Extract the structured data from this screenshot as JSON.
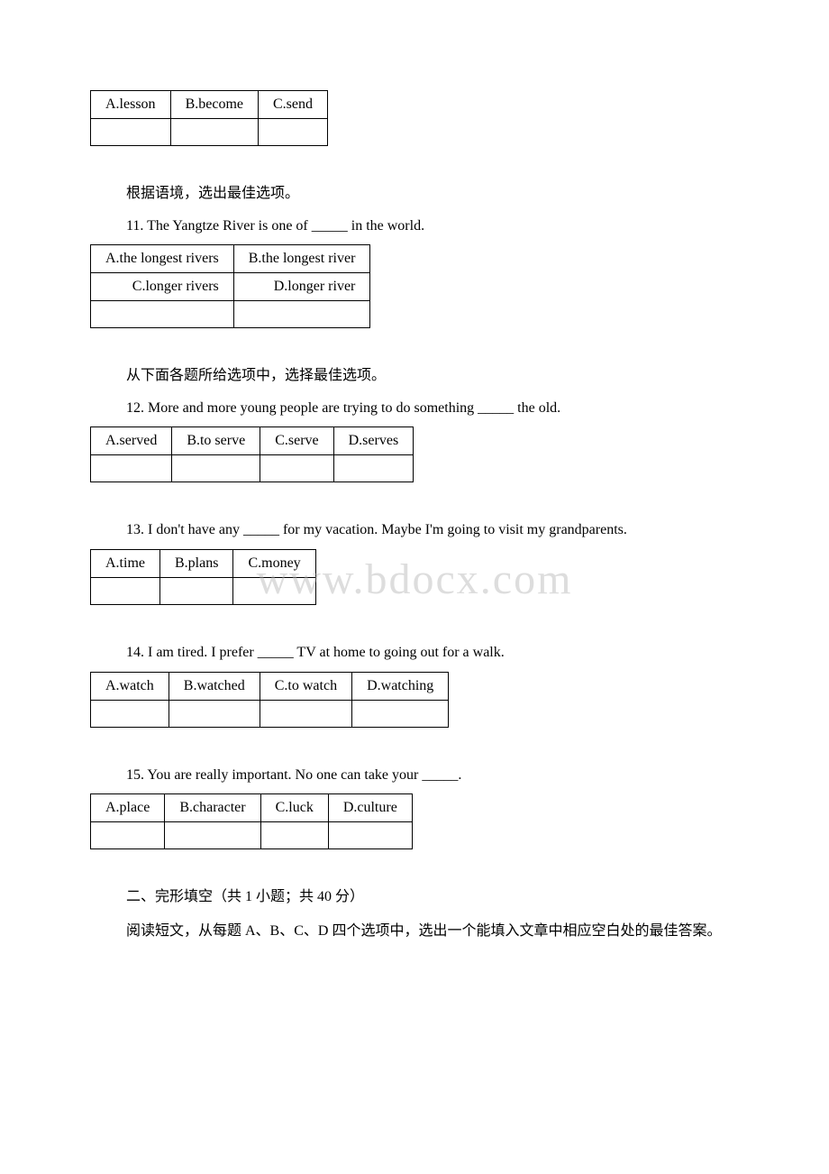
{
  "watermark": "www.bdocx.com",
  "t10": {
    "cells": [
      [
        "A.lesson",
        "B.become",
        "C.send"
      ]
    ],
    "blankCols": 3
  },
  "i11": "根据语境，选出最佳选项。",
  "q11": "11. The Yangtze River is one of _____ in the world.",
  "t11": {
    "cells": [
      [
        "A.the longest rivers",
        "B.the longest river"
      ],
      [
        "C.longer rivers",
        "D.longer river"
      ]
    ],
    "blankCols": 2
  },
  "i12": "从下面各题所给选项中，选择最佳选项。",
  "q12": "12. More and more young people are trying to do something _____ the old.",
  "t12": {
    "cells": [
      [
        "A.served",
        "B.to serve",
        "C.serve",
        "D.serves"
      ]
    ],
    "blankCols": 4
  },
  "q13": "13. I don't have any _____ for my vacation. Maybe I'm going to visit my grandparents.",
  "t13": {
    "cells": [
      [
        "A.time",
        "B.plans",
        "C.money"
      ]
    ],
    "blankCols": 3
  },
  "q14": "14. I am tired. I prefer _____ TV at home to going out for a walk.",
  "t14": {
    "cells": [
      [
        "A.watch",
        "B.watched",
        "C.to watch",
        "D.watching"
      ]
    ],
    "blankCols": 4
  },
  "q15": "15. You are really important. No one can take your _____.",
  "t15": {
    "cells": [
      [
        "A.place",
        "B.character",
        "C.luck",
        "D.culture"
      ]
    ],
    "blankCols": 4
  },
  "section2": {
    "title": "二、完形填空（共 1 小题；共 40 分）",
    "para": "阅读短文，从每题 A、B、C、D 四个选项中，选出一个能填入文章中相应空白处的最佳答案。"
  }
}
